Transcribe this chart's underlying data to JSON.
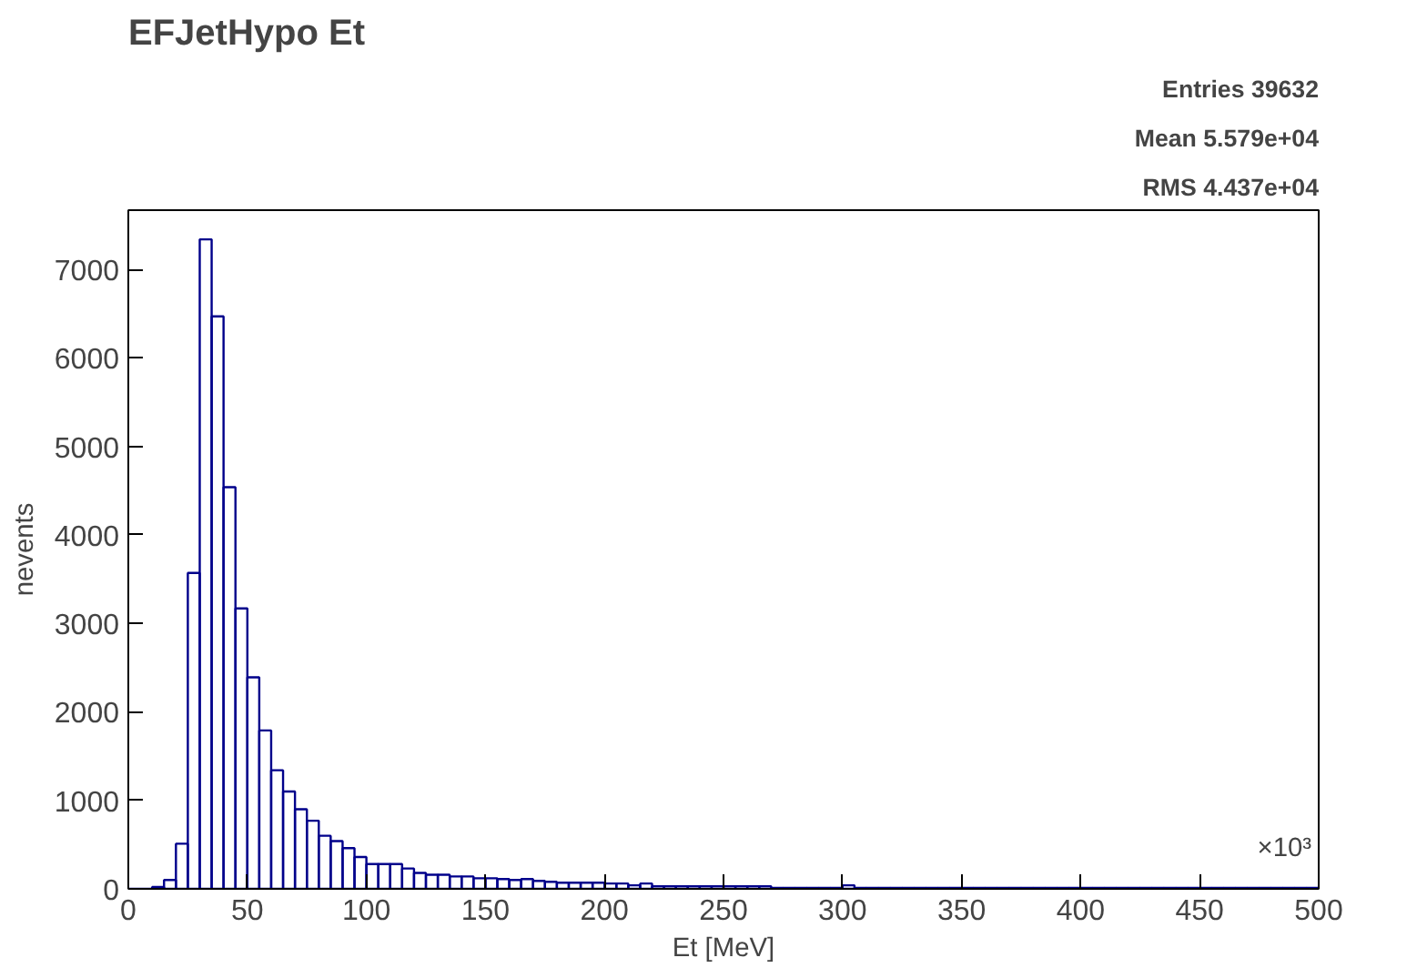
{
  "chart_data": {
    "type": "histogram",
    "title": "EFJetHypo Et",
    "xlabel": "Et [MeV]",
    "ylabel": "nevents",
    "bins": [
      0,
      5,
      10,
      15,
      20,
      25,
      30,
      35,
      40,
      45,
      50,
      55,
      60,
      65,
      70,
      75,
      80,
      85,
      90,
      95,
      100,
      105,
      110,
      115,
      120,
      125,
      130,
      135,
      140,
      145,
      150,
      155,
      160,
      165,
      170,
      175,
      180,
      185,
      190,
      195,
      200,
      205,
      210,
      215,
      220,
      225,
      230,
      235,
      240,
      245,
      250,
      255,
      260,
      265,
      270,
      275,
      280,
      285,
      290,
      295,
      300,
      305,
      310,
      315,
      320,
      325,
      330,
      335,
      340,
      345,
      350,
      355,
      360,
      365,
      370,
      375,
      380,
      385,
      390,
      395,
      400,
      405,
      410,
      415,
      420,
      425,
      430,
      435,
      440,
      445,
      450,
      455,
      460,
      465,
      470,
      475,
      480,
      485,
      490,
      495,
      500
    ],
    "values": [
      0,
      0,
      20,
      100,
      510,
      3570,
      7340,
      6470,
      4540,
      3170,
      2390,
      1790,
      1340,
      1100,
      900,
      770,
      600,
      540,
      460,
      360,
      280,
      280,
      280,
      230,
      180,
      160,
      160,
      140,
      140,
      120,
      120,
      110,
      100,
      110,
      90,
      80,
      70,
      70,
      70,
      70,
      60,
      60,
      40,
      60,
      30,
      30,
      30,
      30,
      30,
      30,
      30,
      30,
      30,
      30,
      10,
      10,
      10,
      10,
      10,
      10,
      40,
      10,
      10,
      10,
      10,
      10,
      10,
      10,
      10,
      10,
      10,
      10,
      10,
      10,
      10,
      10,
      10,
      10,
      10,
      10,
      10,
      10,
      10,
      10,
      10,
      10,
      10,
      10,
      10,
      10,
      10,
      10,
      10,
      10,
      10,
      10,
      10,
      10,
      10,
      10
    ],
    "color": "#00008b",
    "xlim": [
      0,
      500
    ],
    "ylim": [
      0,
      7670
    ],
    "xticks": [
      0,
      50,
      100,
      150,
      200,
      250,
      300,
      350,
      400,
      450,
      500
    ],
    "yticks": [
      0,
      1000,
      2000,
      3000,
      4000,
      5000,
      6000,
      7000
    ],
    "grid": false,
    "annotations": [
      "Entries 39632",
      "Mean 5.579e+04",
      "RMS 4.437e+04",
      {
        "text": "×10³",
        "x": 500,
        "y": 0
      }
    ]
  }
}
